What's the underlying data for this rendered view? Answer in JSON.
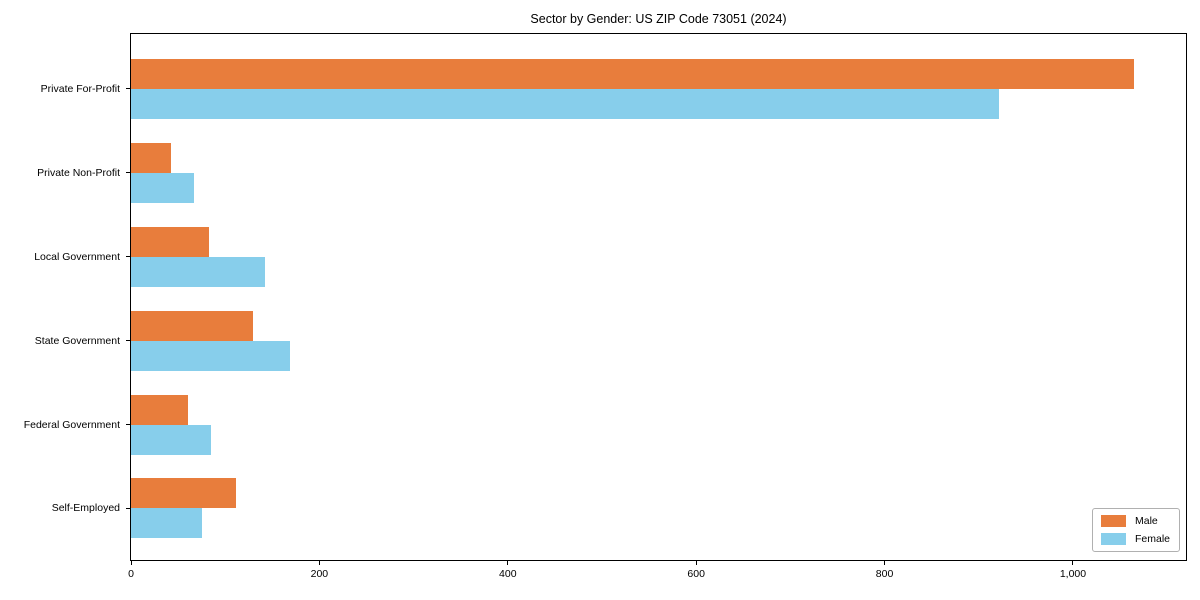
{
  "chart_data": {
    "type": "bar",
    "orientation": "horizontal",
    "title": "Sector by Gender: US ZIP Code 73051 (2024)",
    "categories": [
      "Private For-Profit",
      "Private Non-Profit",
      "Local Government",
      "State Government",
      "Federal Government",
      "Self-Employed"
    ],
    "series": [
      {
        "name": "Male",
        "color": "#e87d3c",
        "values": [
          1065,
          42,
          83,
          130,
          60,
          111
        ]
      },
      {
        "name": "Female",
        "color": "#87ceeb",
        "values": [
          922,
          67,
          142,
          169,
          85,
          75
        ]
      }
    ],
    "xlabel": "",
    "ylabel": "",
    "xlim": [
      0,
      1120
    ],
    "x_ticks": [
      0,
      200,
      400,
      600,
      800,
      1000
    ],
    "x_tick_labels": [
      "0",
      "200",
      "400",
      "600",
      "800",
      "1,000"
    ],
    "grid": false,
    "legend": {
      "position": "lower right",
      "entries": [
        "Male",
        "Female"
      ]
    }
  }
}
